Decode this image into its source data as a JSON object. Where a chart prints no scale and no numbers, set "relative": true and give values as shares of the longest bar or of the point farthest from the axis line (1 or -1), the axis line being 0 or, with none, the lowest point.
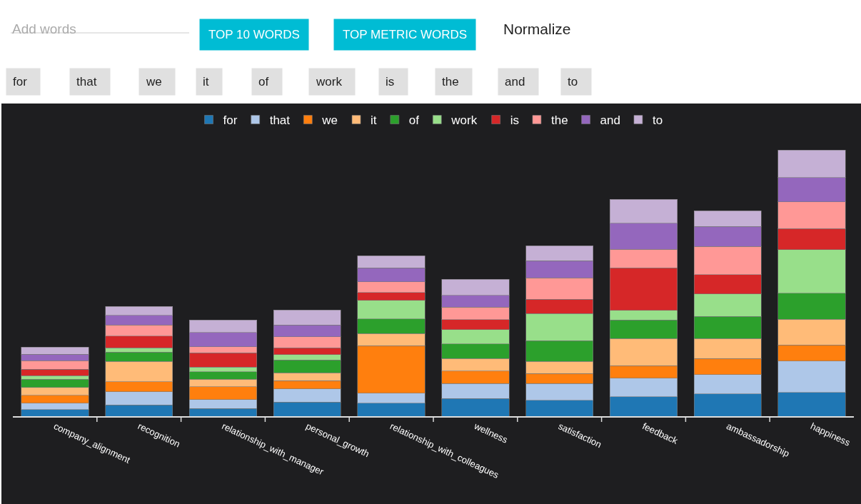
{
  "chart_data": {
    "type": "bar",
    "stacked": true,
    "relative": true,
    "legend": "top",
    "categories": [
      "company_alignment",
      "recognition",
      "relationship_with_manager",
      "personal_growth",
      "relationship_with_colleagues",
      "wellness",
      "satisfaction",
      "feedback",
      "ambassadorship",
      "happiness"
    ],
    "series": [
      {
        "name": "for",
        "color": "#1f77b4",
        "values": [
          0.025,
          0.042,
          0.029,
          0.053,
          0.049,
          0.066,
          0.06,
          0.073,
          0.084,
          0.089
        ]
      },
      {
        "name": "that",
        "color": "#aec7e8",
        "values": [
          0.024,
          0.05,
          0.033,
          0.05,
          0.037,
          0.057,
          0.062,
          0.07,
          0.072,
          0.118
        ]
      },
      {
        "name": "we",
        "color": "#ff7f0e",
        "values": [
          0.03,
          0.038,
          0.048,
          0.031,
          0.179,
          0.047,
          0.038,
          0.047,
          0.061,
          0.061
        ]
      },
      {
        "name": "it",
        "color": "#ffbb78",
        "values": [
          0.029,
          0.076,
          0.029,
          0.029,
          0.046,
          0.047,
          0.046,
          0.101,
          0.074,
          0.096
        ]
      },
      {
        "name": "of",
        "color": "#2ca02c",
        "values": [
          0.031,
          0.034,
          0.028,
          0.048,
          0.054,
          0.054,
          0.078,
          0.07,
          0.084,
          0.098
        ]
      },
      {
        "name": "work",
        "color": "#98df8a",
        "values": [
          0.013,
          0.017,
          0.017,
          0.02,
          0.07,
          0.054,
          0.101,
          0.037,
          0.084,
          0.164
        ]
      },
      {
        "name": "is",
        "color": "#d62728",
        "values": [
          0.024,
          0.044,
          0.054,
          0.026,
          0.03,
          0.038,
          0.054,
          0.159,
          0.072,
          0.078
        ]
      },
      {
        "name": "the",
        "color": "#ff9896",
        "values": [
          0.032,
          0.041,
          0.023,
          0.041,
          0.04,
          0.047,
          0.081,
          0.07,
          0.107,
          0.101
        ]
      },
      {
        "name": "and",
        "color": "#9467bd",
        "values": [
          0.025,
          0.037,
          0.054,
          0.045,
          0.052,
          0.044,
          0.064,
          0.098,
          0.074,
          0.091
        ]
      },
      {
        "name": "to",
        "color": "#c5b0d5",
        "values": [
          0.026,
          0.033,
          0.046,
          0.056,
          0.046,
          0.06,
          0.056,
          0.09,
          0.06,
          0.104
        ]
      }
    ],
    "annotations": [
      "Add words",
      "TOP 10 WORDS",
      "TOP METRIC WORDS",
      "Normalize",
      "for",
      "that",
      "we",
      "it",
      "of",
      "work",
      "is",
      "the",
      "and",
      "to"
    ]
  }
}
